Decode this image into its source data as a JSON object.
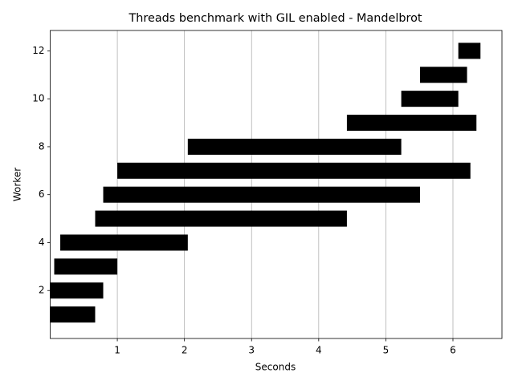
{
  "chart_data": {
    "type": "barh",
    "title": "Threads benchmark with GIL enabled - Mandelbrot",
    "x_label": "Seconds",
    "y_label": "Worker",
    "workers": [
      1,
      2,
      3,
      4,
      5,
      6,
      7,
      8,
      9,
      10,
      11,
      12
    ],
    "starts": [
      0,
      0,
      0.06,
      0.15,
      0.67,
      0.79,
      1.0,
      2.05,
      4.42,
      5.23,
      5.51,
      6.08
    ],
    "ends": [
      0.67,
      0.79,
      1.0,
      2.05,
      4.42,
      5.51,
      6.26,
      5.23,
      6.35,
      6.08,
      6.21,
      6.41
    ],
    "color": "#000000",
    "xlim": [
      0,
      6.73
    ],
    "xticks": [
      1,
      2,
      3,
      4,
      5,
      6
    ],
    "ylim": [
      0,
      12.85
    ],
    "yticks": [
      2,
      4,
      6,
      8,
      10,
      12
    ],
    "grid": "x"
  }
}
